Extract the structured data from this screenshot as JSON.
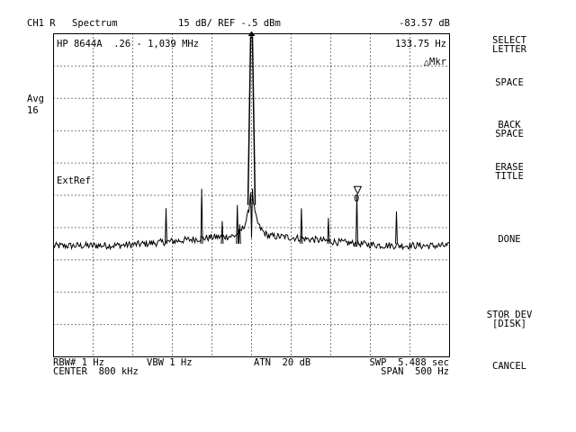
{
  "header": {
    "channel": "CH1 R",
    "mode": "Spectrum",
    "scale_ref": "15 dB/ REF -.5 dBm",
    "marker_value": "-83.57 dB"
  },
  "annotations": {
    "instrument": "HP 8644A  .26 - 1,039 MHz",
    "marker_freq": "133.75 Hz",
    "delta_marker": "△Mkr",
    "avg_label": "Avg",
    "avg_count": "16",
    "ext_ref": "ExtRef",
    "marker_number": "0"
  },
  "footer": {
    "rbw": "RBW# 1 Hz",
    "vbw": "VBW 1 Hz",
    "atn": "ATN  20 dB",
    "swp": "SWP  5.488 sec",
    "center": "CENTER  800 kHz",
    "span": "SPAN  500 Hz"
  },
  "softkeys": {
    "select_letter": "SELECT\nLETTER",
    "space": "SPACE",
    "back_space": "BACK\nSPACE",
    "erase_title": "ERASE\nTITLE",
    "done": "DONE",
    "stor_dev": "STOR DEV\n[DISK]",
    "cancel": "CANCEL"
  },
  "chart_data": {
    "type": "line",
    "x_center_hz": 800000,
    "x_span_hz": 500,
    "x_range_hz": [
      799750,
      800250
    ],
    "y_divisions": 10,
    "y_scale_db_per_div": 15,
    "y_ref_dbm": -0.5,
    "grid": true,
    "noise_floor_div": 3.4,
    "carrier": {
      "x_hz": 800000,
      "div": 10.0
    },
    "spurs": [
      {
        "x_hz": 799892,
        "div": 4.6
      },
      {
        "x_hz": 799937,
        "div": 5.2
      },
      {
        "x_hz": 799963,
        "div": 4.2
      },
      {
        "x_hz": 799982,
        "div": 4.7
      },
      {
        "x_hz": 799985,
        "div": 4.1
      },
      {
        "x_hz": 800063,
        "div": 4.6
      },
      {
        "x_hz": 800097,
        "div": 4.3
      },
      {
        "x_hz": 800133,
        "div": 5.0
      },
      {
        "x_hz": 800183,
        "div": 4.5
      }
    ],
    "marker": {
      "label": "0",
      "x_hz": 800134
    }
  }
}
